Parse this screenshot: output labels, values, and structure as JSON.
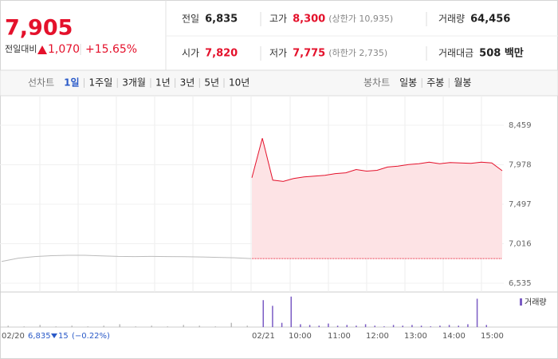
{
  "quote": {
    "price": "7,905",
    "change_label": "전일대비",
    "change": "1,070",
    "change_pct": "+15.65%"
  },
  "stats": [
    {
      "label": "전일",
      "value": "6,835",
      "color": "#222222"
    },
    {
      "label": "고가",
      "value": "8,300",
      "note": "(상한가 10,935)",
      "color": "#e4112b"
    },
    {
      "label": "거래량",
      "value": "64,456",
      "color": "#222222"
    },
    {
      "label": "시가",
      "value": "7,820",
      "color": "#e4112b"
    },
    {
      "label": "저가",
      "value": "7,775",
      "note": "(하한가 2,735)",
      "color": "#e4112b"
    },
    {
      "label": "거래대금",
      "value": "508 백만",
      "color": "#222222"
    }
  ],
  "tabs_left": {
    "label": "선차트",
    "items": [
      "1일",
      "1주일",
      "3개월",
      "1년",
      "3년",
      "5년",
      "10년"
    ],
    "selected": 0
  },
  "tabs_right": {
    "label": "봉차트",
    "items": [
      "일봉",
      "주봉",
      "월봉"
    ]
  },
  "chart": {
    "ylim": [
      6438,
      8721
    ],
    "yticks": [
      {
        "value": 8459,
        "label": "8,459"
      },
      {
        "value": 7978,
        "label": "7,978"
      },
      {
        "value": 7497,
        "label": "7,497"
      },
      {
        "value": 7016,
        "label": "7,016"
      },
      {
        "value": 6535,
        "label": "6,535"
      }
    ],
    "prev_close": 6835,
    "prev_day": {
      "color": "#bbbbbb",
      "values": [
        6800,
        6840,
        6860,
        6870,
        6875,
        6875,
        6868,
        6862,
        6860,
        6862,
        6860,
        6858,
        6855,
        6850,
        6845,
        6835
      ]
    },
    "today": {
      "color": "#e4112b",
      "fill": "#fde3e5",
      "values": [
        7820,
        8300,
        7790,
        7775,
        7810,
        7830,
        7840,
        7850,
        7870,
        7880,
        7920,
        7900,
        7910,
        7950,
        7960,
        7980,
        7990,
        8010,
        7990,
        8005,
        8000,
        7995,
        8010,
        8000,
        7905
      ]
    },
    "volume_label": "거래량",
    "volume_color": "#7b5cc4",
    "volume_prev": [
      2,
      1,
      3,
      1,
      2,
      1,
      2,
      4,
      1,
      2,
      1,
      3,
      2,
      1,
      6,
      2
    ],
    "volume_today": [
      38,
      30,
      6,
      43,
      4,
      3,
      2,
      5,
      2,
      3,
      2,
      4,
      2,
      1,
      3,
      2,
      3,
      2,
      1,
      2,
      3,
      2,
      4,
      40,
      3
    ],
    "volume_max": 45,
    "x_labels": [
      "02/20",
      "02/21",
      "10:00",
      "11:00",
      "12:00",
      "13:00",
      "14:00",
      "15:00"
    ]
  },
  "footer": {
    "prev_price": "6,835",
    "prev_change": "15",
    "prev_change_pct": "(−0.22%)"
  }
}
